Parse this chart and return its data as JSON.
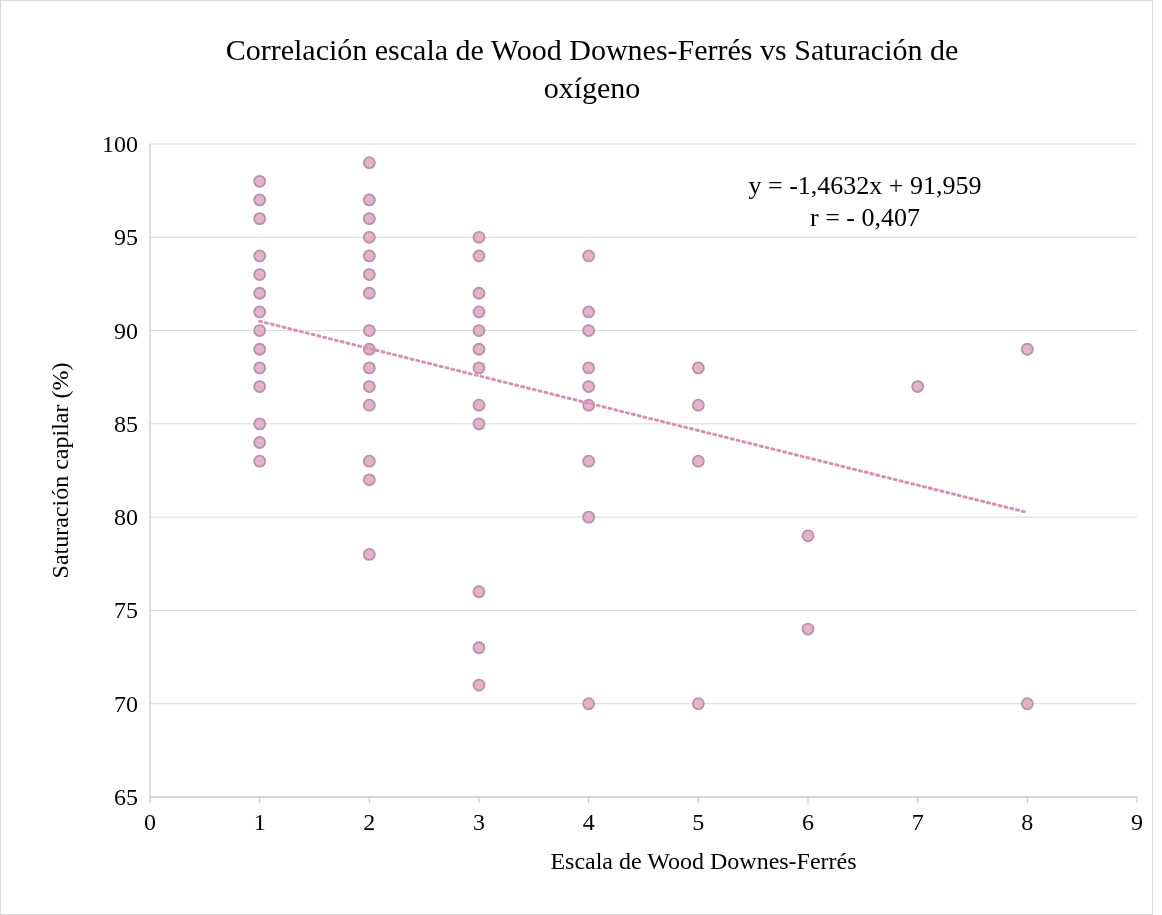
{
  "chart_data": {
    "type": "scatter",
    "title": "Correlación escala de Wood Downes-Ferrés vs Saturación de oxígeno",
    "xlabel": "Escala de Wood Downes-Ferrés",
    "ylabel": "Saturación capilar (%)",
    "annotations": [
      "y = -1,4632x + 91,959",
      "r = - 0,407"
    ],
    "xlim": [
      0,
      9
    ],
    "xticks": [
      0,
      1,
      2,
      3,
      4,
      5,
      6,
      7,
      8,
      9
    ],
    "ylim": [
      65,
      100
    ],
    "yticks": [
      65,
      70,
      75,
      80,
      85,
      90,
      95,
      100
    ],
    "grid": "y",
    "marker": "circle",
    "series": [
      {
        "color": "#e3b3cb",
        "x": [
          1,
          1,
          1,
          1,
          1,
          1,
          1,
          1,
          1,
          1,
          1,
          1,
          1,
          1,
          2,
          2,
          2,
          2,
          2,
          2,
          2,
          2,
          2,
          2,
          2,
          2,
          2,
          2,
          2,
          3,
          3,
          3,
          3,
          3,
          3,
          3,
          3,
          3,
          3,
          3,
          3,
          4,
          4,
          4,
          4,
          4,
          4,
          4,
          4,
          4,
          5,
          5,
          5,
          5,
          6,
          6,
          7,
          8,
          8
        ],
        "values": [
          98,
          97,
          96,
          94,
          93,
          92,
          91,
          90,
          89,
          88,
          87,
          85,
          84,
          83,
          99,
          97,
          96,
          95,
          94,
          93,
          92,
          90,
          89,
          88,
          87,
          86,
          83,
          82,
          78,
          95,
          94,
          92,
          91,
          90,
          89,
          88,
          86,
          85,
          76,
          73,
          71,
          94,
          91,
          90,
          88,
          87,
          86,
          83,
          80,
          70,
          88,
          86,
          83,
          70,
          79,
          74,
          87,
          89,
          70
        ]
      },
      {
        "type": "line",
        "color": "#d98fb2",
        "line_style": "dotted",
        "marker": "none",
        "x": [
          1,
          8
        ],
        "values": [
          90.5,
          80.25
        ]
      }
    ]
  }
}
